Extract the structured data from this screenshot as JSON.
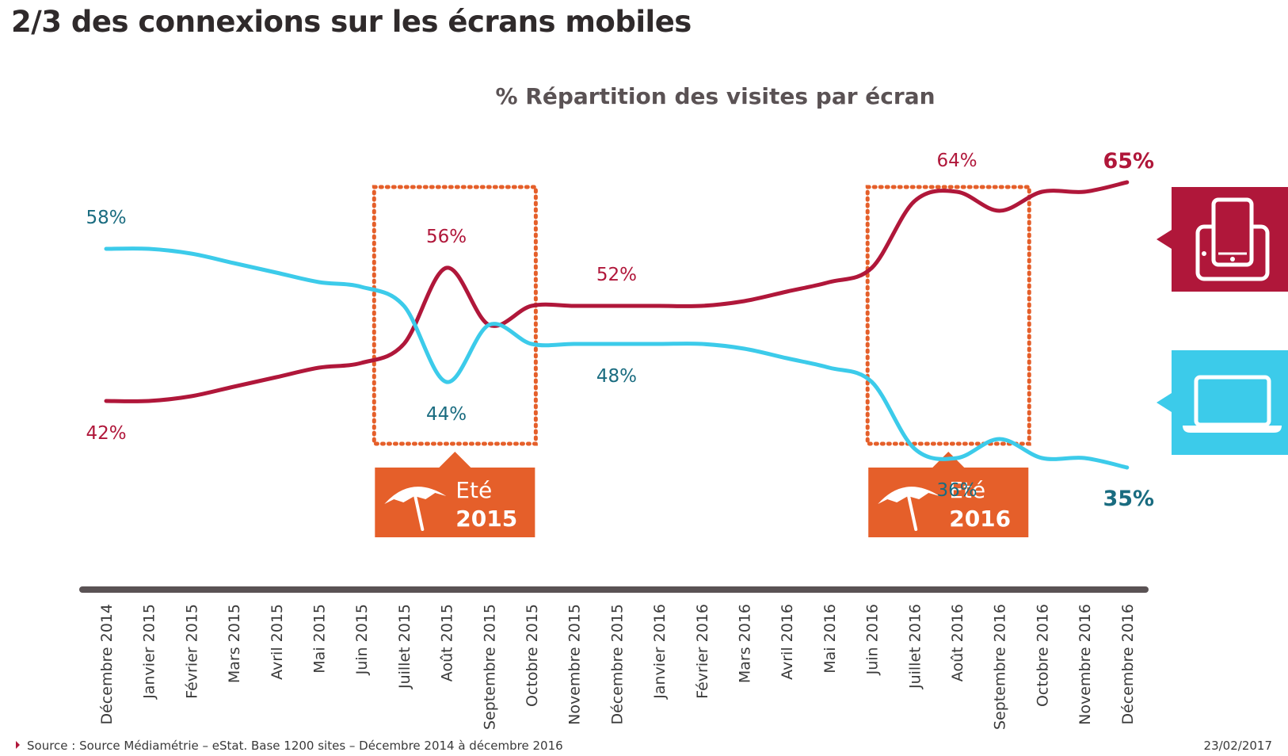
{
  "page": {
    "title": "2/3 des connexions sur les écrans mobiles",
    "source": "Source : Source Médiamétrie – eStat. Base 1200 sites – Décembre 2014 à décembre 2016",
    "date": "23/02/2017"
  },
  "colors": {
    "mobile": "#b0173a",
    "desktop": "#3ccbea",
    "desktop_label": "#1a6c80",
    "highlight": "#e55f2a",
    "axis": "#5a5254"
  },
  "chart_data": {
    "type": "line",
    "title": "% Répartition des visites par écran",
    "categories": [
      "Décembre 2014",
      "Janvier 2015",
      "Février 2015",
      "Mars 2015",
      "Avril 2015",
      "Mai 2015",
      "Juin 2015",
      "Juillet 2015",
      "Août 2015",
      "Septembre 2015",
      "Octobre 2015",
      "Novembre 2015",
      "Décembre 2015",
      "Janvier 2016",
      "Février 2016",
      "Mars 2016",
      "Avril 2016",
      "Mai 2016",
      "Juin 2016",
      "Juillet 2016",
      "Août 2016",
      "Septembre 2016",
      "Octobre 2016",
      "Novembre 2016",
      "Décembre 2016"
    ],
    "ylim": [
      30,
      70
    ],
    "series": [
      {
        "icon": "tablet-phone-icon",
        "color": "#b0173a",
        "values": [
          42,
          42,
          42.5,
          43.5,
          44.5,
          45.5,
          46,
          48,
          56,
          50,
          52,
          52,
          52,
          52,
          52,
          52.5,
          53.5,
          54.5,
          56,
          63,
          64,
          62,
          64,
          64,
          65
        ]
      },
      {
        "icon": "laptop-icon",
        "color": "#3ccbea",
        "values": [
          58,
          58,
          57.5,
          56.5,
          55.5,
          54.5,
          54,
          52,
          44,
          50,
          48,
          48,
          48,
          48,
          48,
          47.5,
          46.5,
          45.5,
          44,
          37,
          36,
          38,
          36,
          36,
          35
        ]
      }
    ],
    "annotations": [
      {
        "text": "58%",
        "series": 1,
        "index": 0
      },
      {
        "text": "42%",
        "series": 0,
        "index": 0
      },
      {
        "text": "56%",
        "series": 0,
        "index": 8
      },
      {
        "text": "44%",
        "series": 1,
        "index": 8
      },
      {
        "text": "52%",
        "series": 0,
        "index": 12
      },
      {
        "text": "48%",
        "series": 1,
        "index": 12
      },
      {
        "text": "64%",
        "series": 0,
        "index": 20
      },
      {
        "text": "36%",
        "series": 1,
        "index": 20
      },
      {
        "text": "65%",
        "series": 0,
        "index": 24,
        "bold": true
      },
      {
        "text": "35%",
        "series": 1,
        "index": 24,
        "bold": true
      }
    ],
    "highlights": [
      {
        "label_word": "Eté",
        "label_year": "2015",
        "from_index": 6.3,
        "to_index": 10.1
      },
      {
        "label_word": "Eté",
        "label_year": "2016",
        "from_index": 17.9,
        "to_index": 21.7
      }
    ],
    "grid": false,
    "legend": "icons at right"
  }
}
